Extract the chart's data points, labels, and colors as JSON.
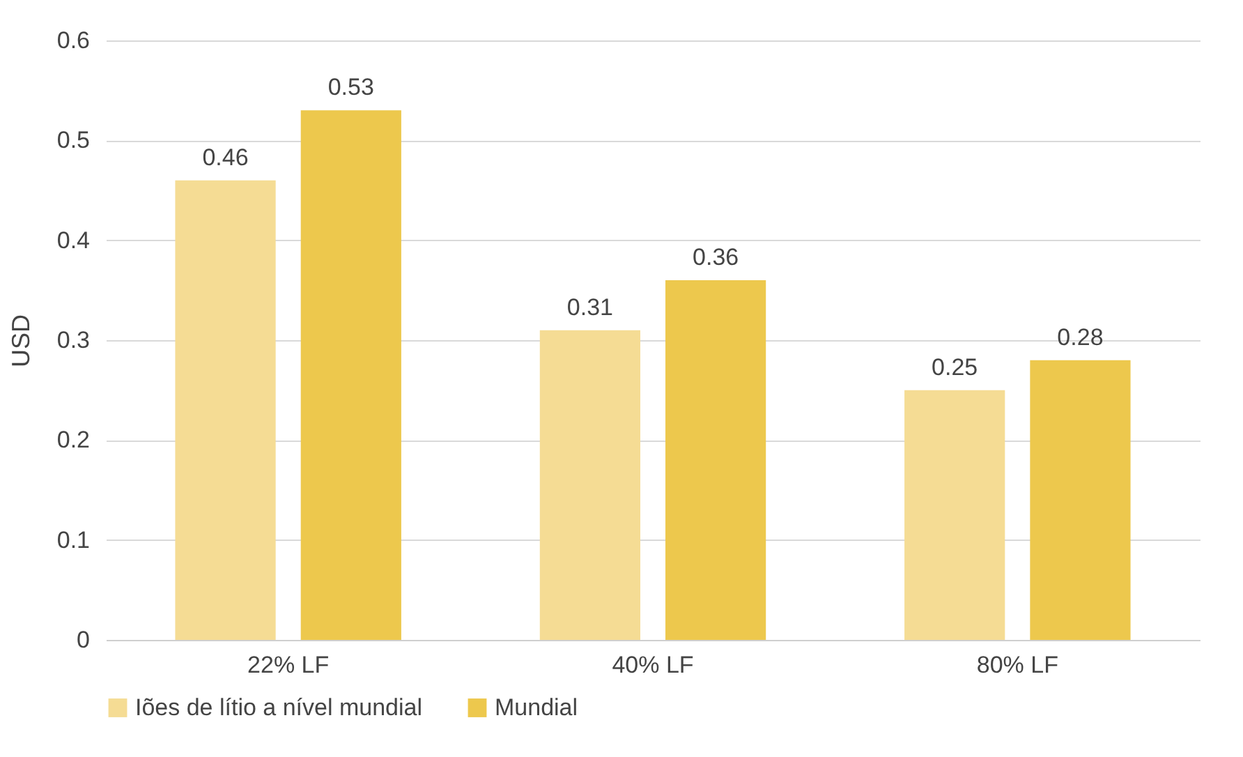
{
  "chart_data": {
    "type": "bar",
    "ylabel": "USD",
    "categories": [
      "22% LF",
      "40% LF",
      "80% LF"
    ],
    "series": [
      {
        "name": "Iões de lítio a nível mundial",
        "color": "#f5dc94",
        "values": [
          0.46,
          0.31,
          0.25
        ]
      },
      {
        "name": "Mundial",
        "color": "#edc84d",
        "values": [
          0.53,
          0.36,
          0.28
        ]
      }
    ],
    "ylim": [
      0,
      0.6
    ],
    "yticks": [
      0,
      0.1,
      0.2,
      0.3,
      0.4,
      0.5,
      0.6
    ],
    "grid": "y",
    "legend": "bottom",
    "data_labels": true
  }
}
